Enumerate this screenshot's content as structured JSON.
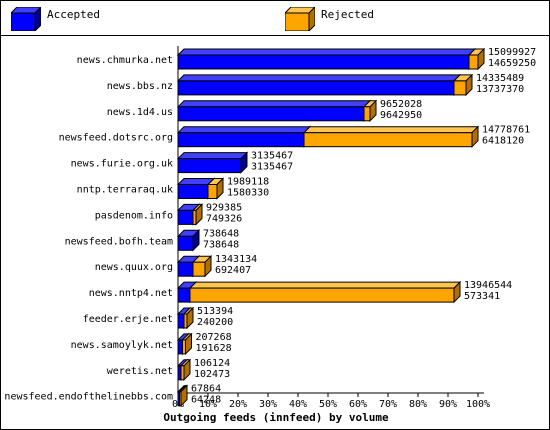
{
  "legend": {
    "accepted_label": "Accepted",
    "rejected_label": "Rejected"
  },
  "colors": {
    "accepted": "#0000ff",
    "accepted_top": "#4040ff",
    "accepted_side": "#00008c",
    "rejected": "#ffa500",
    "rejected_top": "#ffc550",
    "rejected_side": "#b07000"
  },
  "chart_data": {
    "type": "bar",
    "orientation": "horizontal",
    "stacked": true,
    "title": "Outgoing feeds (innfeed) by volume",
    "xlim": [
      0,
      100
    ],
    "x_ticks": [
      "0%",
      "10%",
      "20%",
      "30%",
      "40%",
      "50%",
      "60%",
      "70%",
      "80%",
      "90%",
      "100%"
    ],
    "grid": false,
    "categories": [
      "news.chmurka.net",
      "news.bbs.nz",
      "news.1d4.us",
      "newsfeed.dotsrc.org",
      "news.furie.org.uk",
      "nntp.terraraq.uk",
      "pasdenom.info",
      "newsfeed.bofh.team",
      "news.quux.org",
      "news.nntp4.net",
      "feeder.erje.net",
      "news.samoylyk.net",
      "weretis.net",
      "newsfeed.endofthelinebbs.com"
    ],
    "series": [
      {
        "name": "Accepted",
        "values": [
          97,
          92,
          62,
          42,
          21,
          10,
          5,
          5,
          5,
          4,
          2,
          1.5,
          1,
          0.5
        ]
      },
      {
        "name": "Rejected",
        "values": [
          3,
          4,
          2,
          56,
          0,
          3,
          1,
          0,
          4,
          88,
          1,
          1,
          1,
          0.5
        ]
      }
    ],
    "data_labels": [
      [
        "15099927",
        "14659250"
      ],
      [
        "14335489",
        "13737370"
      ],
      [
        "9652028",
        "9642950"
      ],
      [
        "14778761",
        "6418120"
      ],
      [
        "3135467",
        "3135467"
      ],
      [
        "1989118",
        "1580330"
      ],
      [
        "929385",
        "749326"
      ],
      [
        "738648",
        "738648"
      ],
      [
        "1343134",
        "692407"
      ],
      [
        "13946544",
        "573341"
      ],
      [
        "513394",
        "240200"
      ],
      [
        "207268",
        "191628"
      ],
      [
        "106124",
        "102473"
      ],
      [
        "67864",
        "64248"
      ]
    ]
  }
}
